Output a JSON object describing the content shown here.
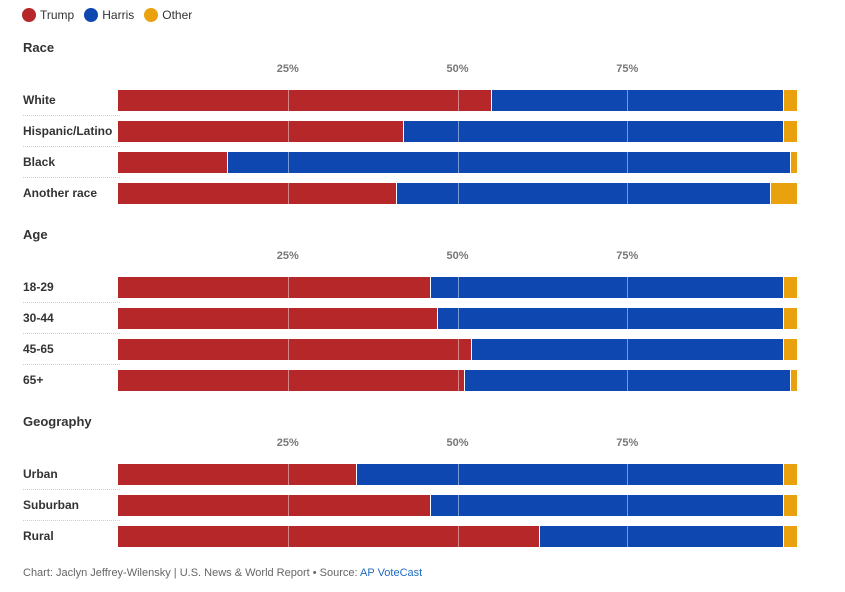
{
  "legend": [
    {
      "label": "Trump",
      "color": "#b52728"
    },
    {
      "label": "Harris",
      "color": "#0e47b0"
    },
    {
      "label": "Other",
      "color": "#e9a20d"
    }
  ],
  "chart_data": {
    "type": "bar",
    "orientation": "horizontal",
    "stacked": true,
    "xlim": [
      0,
      100
    ],
    "tick_labels": [
      "25%",
      "50%",
      "75%"
    ],
    "tick_values": [
      25,
      50,
      75
    ],
    "colors": {
      "Trump": "#b52728",
      "Harris": "#0e47b0",
      "Other": "#e9a20d"
    },
    "groups": [
      {
        "title": "Race",
        "categories": [
          "White",
          "Hispanic/Latino",
          "Black",
          "Another race"
        ],
        "series": [
          {
            "name": "Trump",
            "values": [
              55,
              42,
              16,
              41
            ]
          },
          {
            "name": "Harris",
            "values": [
              43,
              56,
              83,
              55
            ]
          },
          {
            "name": "Other",
            "values": [
              2,
              2,
              1,
              4
            ]
          }
        ]
      },
      {
        "title": "Age",
        "categories": [
          "18-29",
          "30-44",
          "45-65",
          "65+"
        ],
        "series": [
          {
            "name": "Trump",
            "values": [
              46,
              47,
              52,
              51
            ]
          },
          {
            "name": "Harris",
            "values": [
              52,
              51,
              46,
              48
            ]
          },
          {
            "name": "Other",
            "values": [
              2,
              2,
              2,
              1
            ]
          }
        ]
      },
      {
        "title": "Geography",
        "categories": [
          "Urban",
          "Suburban",
          "Rural"
        ],
        "series": [
          {
            "name": "Trump",
            "values": [
              35,
              46,
              62
            ]
          },
          {
            "name": "Harris",
            "values": [
              63,
              52,
              36
            ]
          },
          {
            "name": "Other",
            "values": [
              2,
              2,
              2
            ]
          }
        ]
      }
    ]
  },
  "footer": {
    "credit": "Chart: Jaclyn Jeffrey-Wilensky | U.S. News & World Report • Source: ",
    "source_link": "AP VoteCast"
  }
}
